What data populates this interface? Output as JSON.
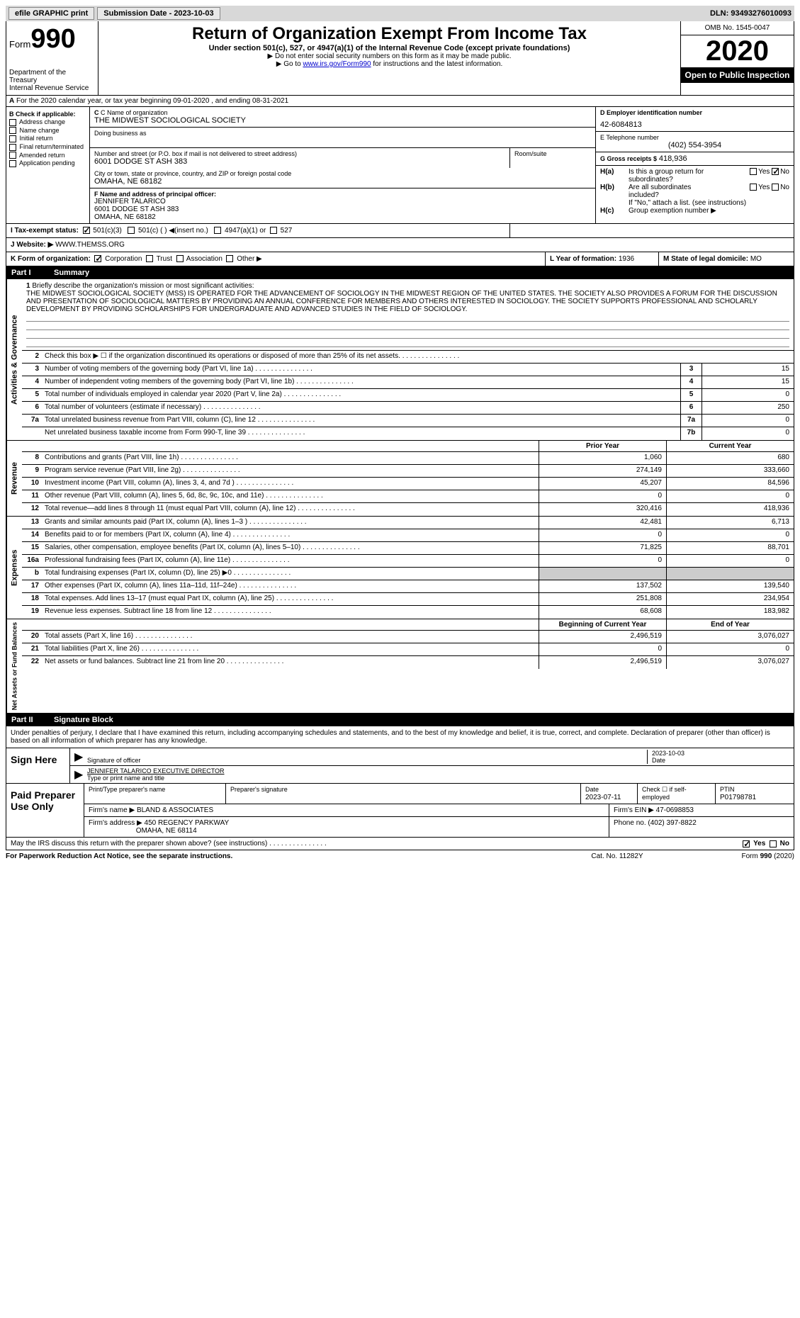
{
  "topbar": {
    "efile": "efile GRAPHIC print",
    "submission": "Submission Date - 2023-10-03",
    "dln_label": "DLN:",
    "dln": "93493276010093"
  },
  "header": {
    "form_word": "Form",
    "form_num": "990",
    "dept": "Department of the Treasury",
    "irs": "Internal Revenue Service",
    "title": "Return of Organization Exempt From Income Tax",
    "subtitle": "Under section 501(c), 527, or 4947(a)(1) of the Internal Revenue Code (except private foundations)",
    "note1": "▶ Do not enter social security numbers on this form as it may be made public.",
    "note2_pre": "▶ Go to ",
    "note2_link": "www.irs.gov/Form990",
    "note2_post": " for instructions and the latest information.",
    "omb": "OMB No. 1545-0047",
    "year": "2020",
    "open": "Open to Public Inspection"
  },
  "rowA": "For the 2020 calendar year, or tax year beginning 09-01-2020   , and ending 08-31-2021",
  "colB": {
    "title": "B Check if applicable:",
    "items": [
      "Address change",
      "Name change",
      "Initial return",
      "Final return/terminated",
      "Amended return",
      "Application pending"
    ]
  },
  "colC": {
    "name_lbl": "C Name of organization",
    "name": "THE MIDWEST SOCIOLOGICAL SOCIETY",
    "dba_lbl": "Doing business as",
    "dba": "",
    "street_lbl": "Number and street (or P.O. box if mail is not delivered to street address)",
    "street": "6001 DODGE ST ASH 383",
    "room_lbl": "Room/suite",
    "city_lbl": "City or town, state or province, country, and ZIP or foreign postal code",
    "city": "OMAHA, NE  68182"
  },
  "colD": {
    "ein_lbl": "D Employer identification number",
    "ein": "42-6084813",
    "phone_lbl": "E Telephone number",
    "phone": "(402) 554-3954",
    "gross_lbl": "G Gross receipts $",
    "gross": "418,936"
  },
  "rowF": {
    "lbl": "F Name and address of principal officer:",
    "name": "JENNIFER TALARICO",
    "addr1": "6001 DODGE ST ASH 383",
    "addr2": "OMAHA, NE  68182"
  },
  "rowH": {
    "ha": "Is this a group return for subordinates?",
    "hb": "Are all subordinates included?",
    "hb_note": "If \"No,\" attach a list. (see instructions)",
    "hc": "Group exemption number ▶"
  },
  "rowI": {
    "lbl": "I   Tax-exempt status:",
    "opt1": "501(c)(3)",
    "opt2": "501(c) (  ) ◀(insert no.)",
    "opt3": "4947(a)(1) or",
    "opt4": "527"
  },
  "rowJ": {
    "lbl": "J   Website: ▶",
    "val": "WWW.THEMSS.ORG"
  },
  "rowK": {
    "lbl": "K Form of organization:",
    "opts": [
      "Corporation",
      "Trust",
      "Association",
      "Other ▶"
    ],
    "l_lbl": "L Year of formation:",
    "l_val": "1936",
    "m_lbl": "M State of legal domicile:",
    "m_val": "MO"
  },
  "part1": {
    "num": "Part I",
    "title": "Summary"
  },
  "mission": {
    "num": "1",
    "lbl": "Briefly describe the organization's mission or most significant activities:",
    "text": "THE MIDWEST SOCIOLOGICAL SOCIETY (MSS) IS OPERATED FOR THE ADVANCEMENT OF SOCIOLOGY IN THE MIDWEST REGION OF THE UNITED STATES. THE SOCIETY ALSO PROVIDES A FORUM FOR THE DISCUSSION AND PRESENTATION OF SOCIOLOGICAL MATTERS BY PROVIDING AN ANNUAL CONFERENCE FOR MEMBERS AND OTHERS INTERESTED IN SOCIOLOGY. THE SOCIETY SUPPORTS PROFESSIONAL AND SCHOLARLY DEVELOPMENT BY PROVIDING SCHOLARSHIPS FOR UNDERGRADUATE AND ADVANCED STUDIES IN THE FIELD OF SOCIOLOGY."
  },
  "governance": [
    {
      "n": "2",
      "d": "Check this box ▶ ☐ if the organization discontinued its operations or disposed of more than 25% of its net assets.",
      "b": "",
      "v": ""
    },
    {
      "n": "3",
      "d": "Number of voting members of the governing body (Part VI, line 1a)",
      "b": "3",
      "v": "15"
    },
    {
      "n": "4",
      "d": "Number of independent voting members of the governing body (Part VI, line 1b)",
      "b": "4",
      "v": "15"
    },
    {
      "n": "5",
      "d": "Total number of individuals employed in calendar year 2020 (Part V, line 2a)",
      "b": "5",
      "v": "0"
    },
    {
      "n": "6",
      "d": "Total number of volunteers (estimate if necessary)",
      "b": "6",
      "v": "250"
    },
    {
      "n": "7a",
      "d": "Total unrelated business revenue from Part VIII, column (C), line 12",
      "b": "7a",
      "v": "0"
    },
    {
      "n": "",
      "d": "Net unrelated business taxable income from Form 990-T, line 39",
      "b": "7b",
      "v": "0"
    }
  ],
  "col_prior": "Prior Year",
  "col_current": "Current Year",
  "revenue": [
    {
      "n": "8",
      "d": "Contributions and grants (Part VIII, line 1h)",
      "c1": "1,060",
      "c2": "680"
    },
    {
      "n": "9",
      "d": "Program service revenue (Part VIII, line 2g)",
      "c1": "274,149",
      "c2": "333,660"
    },
    {
      "n": "10",
      "d": "Investment income (Part VIII, column (A), lines 3, 4, and 7d )",
      "c1": "45,207",
      "c2": "84,596"
    },
    {
      "n": "11",
      "d": "Other revenue (Part VIII, column (A), lines 5, 6d, 8c, 9c, 10c, and 11e)",
      "c1": "0",
      "c2": "0"
    },
    {
      "n": "12",
      "d": "Total revenue—add lines 8 through 11 (must equal Part VIII, column (A), line 12)",
      "c1": "320,416",
      "c2": "418,936"
    }
  ],
  "expenses": [
    {
      "n": "13",
      "d": "Grants and similar amounts paid (Part IX, column (A), lines 1–3 )",
      "c1": "42,481",
      "c2": "6,713"
    },
    {
      "n": "14",
      "d": "Benefits paid to or for members (Part IX, column (A), line 4)",
      "c1": "0",
      "c2": "0"
    },
    {
      "n": "15",
      "d": "Salaries, other compensation, employee benefits (Part IX, column (A), lines 5–10)",
      "c1": "71,825",
      "c2": "88,701"
    },
    {
      "n": "16a",
      "d": "Professional fundraising fees (Part IX, column (A), line 11e)",
      "c1": "0",
      "c2": "0"
    },
    {
      "n": "b",
      "d": "Total fundraising expenses (Part IX, column (D), line 25) ▶0",
      "c1": "shade",
      "c2": "shade"
    },
    {
      "n": "17",
      "d": "Other expenses (Part IX, column (A), lines 11a–11d, 11f–24e)",
      "c1": "137,502",
      "c2": "139,540"
    },
    {
      "n": "18",
      "d": "Total expenses. Add lines 13–17 (must equal Part IX, column (A), line 25)",
      "c1": "251,808",
      "c2": "234,954"
    },
    {
      "n": "19",
      "d": "Revenue less expenses. Subtract line 18 from line 12",
      "c1": "68,608",
      "c2": "183,982"
    }
  ],
  "col_begin": "Beginning of Current Year",
  "col_end": "End of Year",
  "netassets": [
    {
      "n": "20",
      "d": "Total assets (Part X, line 16)",
      "c1": "2,496,519",
      "c2": "3,076,027"
    },
    {
      "n": "21",
      "d": "Total liabilities (Part X, line 26)",
      "c1": "0",
      "c2": "0"
    },
    {
      "n": "22",
      "d": "Net assets or fund balances. Subtract line 21 from line 20",
      "c1": "2,496,519",
      "c2": "3,076,027"
    }
  ],
  "part2": {
    "num": "Part II",
    "title": "Signature Block"
  },
  "sig": {
    "decl": "Under penalties of perjury, I declare that I have examined this return, including accompanying schedules and statements, and to the best of my knowledge and belief, it is true, correct, and complete. Declaration of preparer (other than officer) is based on all information of which preparer has any knowledge.",
    "here": "Sign Here",
    "sig_lbl": "Signature of officer",
    "date_lbl": "Date",
    "date": "2023-10-03",
    "name": "JENNIFER TALARICO  EXECUTIVE DIRECTOR",
    "name_lbl": "Type or print name and title"
  },
  "prep": {
    "lbl": "Paid Preparer Use Only",
    "h1": "Print/Type preparer's name",
    "h2": "Preparer's signature",
    "h3": "Date",
    "h3v": "2023-07-11",
    "h4": "Check ☐ if self-employed",
    "h5": "PTIN",
    "h5v": "P01798781",
    "firm_lbl": "Firm's name    ▶",
    "firm": "BLAND & ASSOCIATES",
    "ein_lbl": "Firm's EIN ▶",
    "ein": "47-0698853",
    "addr_lbl": "Firm's address ▶",
    "addr1": "450 REGENCY PARKWAY",
    "addr2": "OMAHA, NE  68114",
    "phone_lbl": "Phone no.",
    "phone": "(402) 397-8822"
  },
  "discuss": "May the IRS discuss this return with the preparer shown above? (see instructions)",
  "footer": {
    "paperwork": "For Paperwork Reduction Act Notice, see the separate instructions.",
    "cat": "Cat. No. 11282Y",
    "form": "Form 990 (2020)"
  },
  "verts": {
    "gov": "Activities & Governance",
    "rev": "Revenue",
    "exp": "Expenses",
    "net": "Net Assets or Fund Balances"
  },
  "yesno": {
    "yes": "Yes",
    "no": "No"
  }
}
